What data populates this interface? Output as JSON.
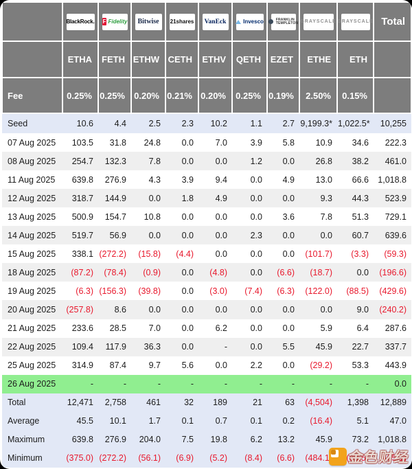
{
  "colors": {
    "header_bg": "#7d7d7d",
    "grid": "#ffffff",
    "row_alt": "#efefef",
    "row_seed": "#e2e8f6",
    "row_green": "#90ee90",
    "negative_text": "#e8192d",
    "watermark_logo": "#f2a31c"
  },
  "header": {
    "total_label": "Total",
    "fee_label": "Fee",
    "issuers": [
      {
        "id": "blackrock",
        "label": "BlackRock."
      },
      {
        "id": "fidelity",
        "label": "Fidelity",
        "badge": "F"
      },
      {
        "id": "bitwise",
        "label": "Bitwise"
      },
      {
        "id": "21shares",
        "label": "21shares"
      },
      {
        "id": "vaneck",
        "label": "VanEck"
      },
      {
        "id": "invesco",
        "label": "Invesco"
      },
      {
        "id": "franklin",
        "label_top": "FRANKLIN",
        "label_bottom": "TEMPLETON"
      },
      {
        "id": "grayscale",
        "label": "GRAYSCALE"
      },
      {
        "id": "grayscale-mini",
        "label": "GRAYSCALE"
      }
    ]
  },
  "chart_data": {
    "type": "table",
    "tickers": [
      "ETHA",
      "FETH",
      "ETHW",
      "CETH",
      "ETHV",
      "QETH",
      "EZET",
      "ETHE",
      "ETH"
    ],
    "fees": [
      "0.25%",
      "0.25%",
      "0.20%",
      "0.21%",
      "0.20%",
      "0.25%",
      "0.19%",
      "2.50%",
      "0.15%"
    ],
    "rows": [
      {
        "label": "Seed",
        "type": "seed",
        "cells": [
          "10.6",
          "4.4",
          "2.5",
          "2.3",
          "10.2",
          "1.1",
          "2.7",
          "9,199.3*",
          "1,022.5*",
          "10,255"
        ]
      },
      {
        "label": "07 Aug 2025",
        "type": "white",
        "cells": [
          "103.5",
          "31.8",
          "24.8",
          "0.0",
          "7.0",
          "3.9",
          "5.8",
          "10.9",
          "34.6",
          "222.3"
        ]
      },
      {
        "label": "08 Aug 2025",
        "type": "alt",
        "cells": [
          "254.7",
          "132.3",
          "7.8",
          "0.0",
          "0.0",
          "1.2",
          "0.0",
          "26.8",
          "38.2",
          "461.0"
        ]
      },
      {
        "label": "11 Aug 2025",
        "type": "white",
        "cells": [
          "639.8",
          "276.9",
          "4.3",
          "3.9",
          "9.4",
          "0.0",
          "4.9",
          "13.0",
          "66.6",
          "1,018.8"
        ]
      },
      {
        "label": "12 Aug 2025",
        "type": "alt",
        "cells": [
          "318.7",
          "144.9",
          "0.0",
          "1.8",
          "4.9",
          "0.0",
          "0.0",
          "9.3",
          "44.3",
          "523.9"
        ]
      },
      {
        "label": "13 Aug 2025",
        "type": "white",
        "cells": [
          "500.9",
          "154.7",
          "10.8",
          "0.0",
          "0.0",
          "0.0",
          "3.6",
          "7.8",
          "51.3",
          "729.1"
        ]
      },
      {
        "label": "14 Aug 2025",
        "type": "alt",
        "cells": [
          "519.7",
          "56.9",
          "0.0",
          "0.0",
          "0.0",
          "2.3",
          "0.0",
          "0.0",
          "60.7",
          "639.6"
        ]
      },
      {
        "label": "15 Aug 2025",
        "type": "white",
        "cells": [
          "338.1",
          "(272.2)",
          "(15.8)",
          "(4.4)",
          "0.0",
          "0.0",
          "0.0",
          "(101.7)",
          "(3.3)",
          "(59.3)"
        ]
      },
      {
        "label": "18 Aug 2025",
        "type": "alt",
        "cells": [
          "(87.2)",
          "(78.4)",
          "(0.9)",
          "0.0",
          "(4.8)",
          "0.0",
          "(6.6)",
          "(18.7)",
          "0.0",
          "(196.6)"
        ]
      },
      {
        "label": "19 Aug 2025",
        "type": "white",
        "cells": [
          "(6.3)",
          "(156.3)",
          "(39.8)",
          "0.0",
          "(3.0)",
          "(7.4)",
          "(6.3)",
          "(122.0)",
          "(88.5)",
          "(429.6)"
        ]
      },
      {
        "label": "20 Aug 2025",
        "type": "alt",
        "cells": [
          "(257.8)",
          "8.6",
          "0.0",
          "0.0",
          "0.0",
          "0.0",
          "0.0",
          "0.0",
          "9.0",
          "(240.2)"
        ]
      },
      {
        "label": "21 Aug 2025",
        "type": "white",
        "cells": [
          "233.6",
          "28.5",
          "7.0",
          "0.0",
          "6.2",
          "0.0",
          "0.0",
          "5.9",
          "6.4",
          "287.6"
        ]
      },
      {
        "label": "22 Aug 2025",
        "type": "alt",
        "cells": [
          "109.4",
          "117.9",
          "36.3",
          "0.0",
          "-",
          "0.0",
          "5.5",
          "45.9",
          "22.7",
          "337.7"
        ]
      },
      {
        "label": "25 Aug 2025",
        "type": "white",
        "cells": [
          "314.9",
          "87.4",
          "9.7",
          "5.6",
          "0.0",
          "2.2",
          "0.0",
          "(29.2)",
          "53.3",
          "443.9"
        ]
      },
      {
        "label": "26 Aug 2025",
        "type": "green",
        "cells": [
          "-",
          "-",
          "-",
          "-",
          "-",
          "-",
          "-",
          "-",
          "-",
          "0.0"
        ]
      },
      {
        "label": "Total",
        "type": "summary",
        "cells": [
          "12,471",
          "2,758",
          "461",
          "32",
          "189",
          "21",
          "63",
          "(4,504)",
          "1,398",
          "12,889"
        ]
      },
      {
        "label": "Average",
        "type": "summary",
        "cells": [
          "45.5",
          "10.1",
          "1.7",
          "0.1",
          "0.7",
          "0.1",
          "0.2",
          "(16.4)",
          "5.1",
          "47.0"
        ]
      },
      {
        "label": "Maximum",
        "type": "summary",
        "cells": [
          "639.8",
          "276.9",
          "204.0",
          "7.5",
          "19.8",
          "6.2",
          "13.2",
          "45.9",
          "73.2",
          "1,018.8"
        ]
      },
      {
        "label": "Minimum",
        "type": "summary",
        "cells": [
          "(375.0)",
          "(272.2)",
          "(56.1)",
          "(6.9)",
          "(5.2)",
          "(8.4)",
          "(6.6)",
          "(484.1)",
          "(88.5)",
          "(465.1)"
        ]
      }
    ]
  },
  "watermark": {
    "text": "金色财经"
  }
}
